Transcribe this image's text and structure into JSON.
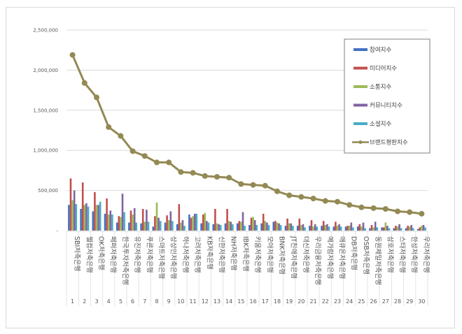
{
  "chart_data": {
    "type": "bar",
    "title": "",
    "xlabel": "",
    "ylabel": "",
    "ylim": [
      0,
      2500000
    ],
    "yticks": [
      "-",
      "500,000",
      "1,000,000",
      "1,500,000",
      "2,000,000",
      "2,500,000"
    ],
    "grid": true,
    "legend_position": "right-inside",
    "categories": [
      "SBI저축은행",
      "웰컴저축은행",
      "OK저축은행",
      "페퍼저축은행",
      "한국투자저축은행",
      "유진저축은행",
      "푸른저축은행",
      "스마트저축은행",
      "상상인저축은행",
      "하나저축은행",
      "고려저축은행",
      "KB저축은행",
      "신한저축은행",
      "NH저축은행",
      "IBK저축은행",
      "키움저축은행",
      "모아저축은행",
      "BNK저축은행",
      "JT친애저축은행",
      "대신저축은행",
      "우리금융저축은행",
      "예가람저축은행",
      "애큐온저축은행",
      "DB저축은행",
      "OSB저축은행",
      "동원제일저축은행",
      "삼호저축은행",
      "스타저축은행",
      "한성저축은행",
      "우리저축은행"
    ],
    "ranks": [
      "1",
      "2",
      "3",
      "4",
      "5",
      "6",
      "7",
      "8",
      "9",
      "10",
      "11",
      "12",
      "13",
      "14",
      "15",
      "16",
      "17",
      "18",
      "19",
      "20",
      "21",
      "22",
      "23",
      "24",
      "25",
      "26",
      "27",
      "28",
      "29",
      "30"
    ],
    "series": [
      {
        "name": "참여지수",
        "color": "#4472c4",
        "kind": "bar",
        "values": [
          320000,
          270000,
          240000,
          210000,
          100000,
          100000,
          90000,
          50000,
          100000,
          80000,
          200000,
          90000,
          80000,
          90000,
          90000,
          70000,
          90000,
          110000,
          60000,
          60000,
          60000,
          60000,
          50000,
          50000,
          50000,
          30000,
          40000,
          30000,
          30000,
          20000
        ]
      },
      {
        "name": "미디어지수",
        "color": "#c0504d",
        "kind": "bar",
        "values": [
          650000,
          600000,
          480000,
          400000,
          180000,
          250000,
          270000,
          180000,
          190000,
          330000,
          160000,
          200000,
          270000,
          270000,
          120000,
          160000,
          210000,
          120000,
          150000,
          150000,
          130000,
          120000,
          110000,
          60000,
          80000,
          70000,
          40000,
          60000,
          60000,
          40000
        ]
      },
      {
        "name": "소통지수",
        "color": "#9bbb59",
        "kind": "bar",
        "values": [
          380000,
          320000,
          320000,
          200000,
          170000,
          200000,
          110000,
          350000,
          130000,
          100000,
          180000,
          220000,
          90000,
          120000,
          110000,
          170000,
          120000,
          100000,
          90000,
          70000,
          50000,
          70000,
          60000,
          60000,
          50000,
          40000,
          100000,
          50000,
          50000,
          60000
        ]
      },
      {
        "name": "커뮤니티지수",
        "color": "#8064a2",
        "kind": "bar",
        "values": [
          500000,
          340000,
          320000,
          250000,
          460000,
          280000,
          260000,
          160000,
          240000,
          130000,
          210000,
          120000,
          80000,
          110000,
          230000,
          130000,
          100000,
          90000,
          90000,
          80000,
          80000,
          80000,
          80000,
          100000,
          100000,
          110000,
          60000,
          80000,
          70000,
          70000
        ]
      },
      {
        "name": "소셜지수",
        "color": "#4bacc6",
        "kind": "bar",
        "values": [
          330000,
          300000,
          360000,
          200000,
          230000,
          100000,
          110000,
          120000,
          120000,
          60000,
          210000,
          100000,
          70000,
          80000,
          60000,
          70000,
          70000,
          70000,
          60000,
          40000,
          50000,
          50000,
          50000,
          40000,
          30000,
          40000,
          30000,
          30000,
          30000,
          40000
        ]
      },
      {
        "name": "브랜드평판지수",
        "color": "#938953",
        "kind": "line",
        "values": [
          2190000,
          1840000,
          1660000,
          1290000,
          1180000,
          990000,
          930000,
          850000,
          850000,
          730000,
          720000,
          680000,
          670000,
          660000,
          580000,
          570000,
          560000,
          490000,
          440000,
          420000,
          400000,
          370000,
          360000,
          320000,
          290000,
          280000,
          270000,
          240000,
          230000,
          210000
        ]
      }
    ]
  }
}
